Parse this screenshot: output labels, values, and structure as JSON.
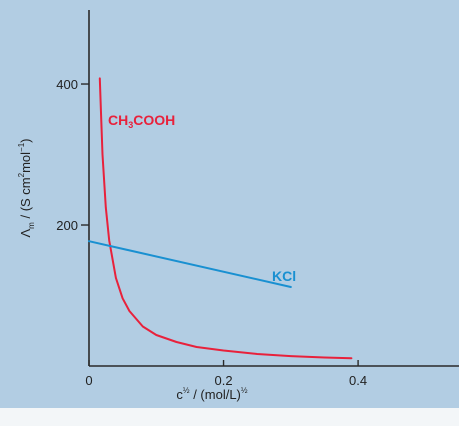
{
  "chart_data": {
    "type": "line",
    "title": "",
    "xlabel": {
      "base": "c",
      "base_sup": "½",
      "rest": " / (mol/L)",
      "rest_sup": "½"
    },
    "ylabel": {
      "lambda": "Λ",
      "lambda_sub": "m",
      "middle": " / (S cm",
      "sup1": "2",
      "middle2": "mol",
      "sup2": "−1",
      "end": ")"
    },
    "xlim": [
      0,
      0.55
    ],
    "ylim": [
      0,
      505
    ],
    "x_ticks": [
      {
        "value": 0,
        "label": "0"
      },
      {
        "value": 0.2,
        "label": "0.2"
      },
      {
        "value": 0.4,
        "label": "0.4"
      }
    ],
    "y_ticks": [
      {
        "value": 200,
        "label": "200"
      },
      {
        "value": 400,
        "label": "400"
      }
    ],
    "grid": false,
    "legend": "none",
    "series": [
      {
        "name": "CH₃COOH",
        "label_parts": {
          "a": "CH",
          "sub": "3",
          "b": "COOH"
        },
        "color": "#e8213b",
        "x": [
          0.016,
          0.018,
          0.02,
          0.025,
          0.03,
          0.04,
          0.05,
          0.06,
          0.08,
          0.1,
          0.13,
          0.16,
          0.2,
          0.25,
          0.3,
          0.35,
          0.39
        ],
        "y": [
          408,
          355,
          300,
          225,
          178,
          125,
          96,
          78,
          56,
          44,
          34,
          27,
          22,
          17,
          14,
          12,
          11
        ]
      },
      {
        "name": "KCl",
        "label_parts": {
          "a": "KCl",
          "sub": "",
          "b": ""
        },
        "color": "#1990d1",
        "x": [
          0,
          0.3
        ],
        "y": [
          177,
          112
        ]
      }
    ]
  }
}
